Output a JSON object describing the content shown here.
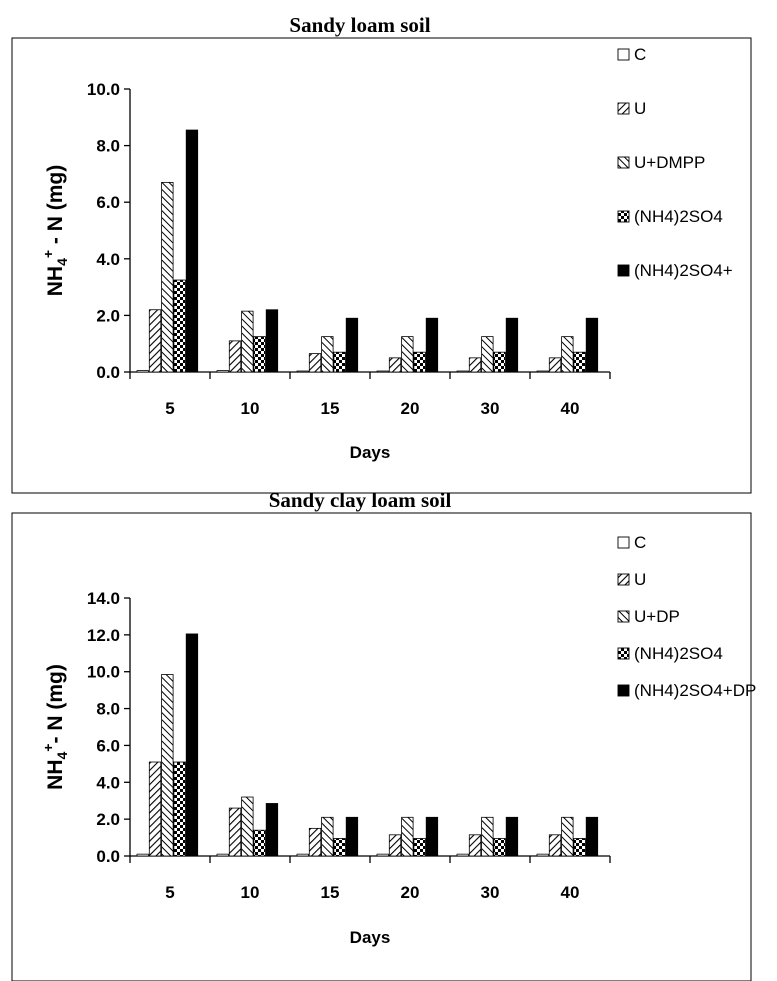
{
  "chart_data": [
    {
      "type": "bar",
      "title": "Sandy loam soil",
      "xlabel": "Days",
      "ylabel_main": "NH",
      "ylabel_sub": "4",
      "ylabel_sup": "+",
      "ylabel_rest": " - N (mg)",
      "ylim": [
        0,
        10
      ],
      "yticks": [
        "0.0",
        "2.0",
        "4.0",
        "6.0",
        "8.0",
        "10.0"
      ],
      "categories": [
        "5",
        "10",
        "15",
        "20",
        "30",
        "40"
      ],
      "series": [
        {
          "name": "C",
          "values": [
            0.05,
            0.05,
            0.0,
            0.0,
            0.0,
            0.0
          ],
          "pattern": "white"
        },
        {
          "name": "U",
          "values": [
            2.2,
            1.1,
            0.65,
            0.5,
            0.5,
            0.5
          ],
          "pattern": "diag-dense"
        },
        {
          "name": "U+DMPP",
          "values": [
            6.7,
            2.15,
            1.25,
            1.25,
            1.25,
            1.25
          ],
          "pattern": "diag-wide"
        },
        {
          "name": "(NH4)2SO4",
          "values": [
            3.25,
            1.25,
            0.7,
            0.7,
            0.7,
            0.7
          ],
          "pattern": "checker"
        },
        {
          "name": "(NH4)2SO4+",
          "values": [
            8.55,
            2.2,
            1.9,
            1.9,
            1.9,
            1.9
          ],
          "pattern": "black"
        }
      ]
    },
    {
      "type": "bar",
      "title": "Sandy clay loam soil",
      "xlabel": "Days",
      "ylabel_main": "NH",
      "ylabel_sub": "4",
      "ylabel_sup": "+",
      "ylabel_rest": "- N (mg)",
      "ylim": [
        0,
        14
      ],
      "yticks": [
        "0.0",
        "2.0",
        "4.0",
        "6.0",
        "8.0",
        "10.0",
        "12.0",
        "14.0"
      ],
      "categories": [
        "5",
        "10",
        "15",
        "20",
        "30",
        "40"
      ],
      "series": [
        {
          "name": "C",
          "values": [
            0.1,
            0.1,
            0.1,
            0.1,
            0.1,
            0.1
          ],
          "pattern": "white"
        },
        {
          "name": "U",
          "values": [
            5.1,
            2.6,
            1.5,
            1.15,
            1.15,
            1.15
          ],
          "pattern": "diag-dense"
        },
        {
          "name": "U+DP",
          "values": [
            9.85,
            3.2,
            2.1,
            2.1,
            2.1,
            2.1
          ],
          "pattern": "diag-wide"
        },
        {
          "name": "(NH4)2SO4",
          "values": [
            5.1,
            1.4,
            0.95,
            0.95,
            0.95,
            0.95
          ],
          "pattern": "checker"
        },
        {
          "name": "(NH4)2SO4+DP",
          "values": [
            12.05,
            2.85,
            2.1,
            2.1,
            2.1,
            2.1
          ],
          "pattern": "black"
        }
      ]
    }
  ]
}
